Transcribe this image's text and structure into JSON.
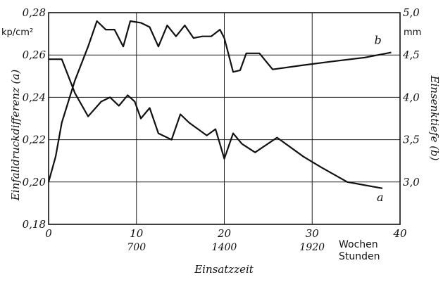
{
  "chart_data": {
    "type": "line",
    "xlabel": "Einsatzzeit",
    "x_ticks": [
      "0",
      "10",
      "20",
      "30",
      "40"
    ],
    "x_secondary_ticks": [
      "700",
      "1400",
      "1920"
    ],
    "x_unit_primary": "Wochen",
    "x_unit_secondary": "Stunden",
    "xlim": [
      0,
      40
    ],
    "y_left": {
      "label": "Einfalldruckdifferenz (a)",
      "unit": "kp/cm²",
      "ylim": [
        0.18,
        0.28
      ],
      "ticks": [
        "0,18",
        "0,20",
        "0,22",
        "0,24",
        "0,26",
        "0,28"
      ]
    },
    "y_right": {
      "label": "Einsenktiefe (b)",
      "unit": "mm",
      "ylim": [
        2.5,
        5.0
      ],
      "ticks": [
        "3,0",
        "3,5",
        "4,0",
        "4,5",
        "5,0"
      ]
    },
    "grid": true,
    "series": [
      {
        "name": "a",
        "axis": "left",
        "x": [
          0,
          1.5,
          3,
          4.5,
          6,
          7,
          8,
          9,
          9.8,
          10.5,
          11.5,
          12.5,
          14,
          15,
          16,
          18,
          19,
          20,
          21,
          22,
          23.5,
          26,
          29,
          31,
          34,
          38
        ],
        "y": [
          0.258,
          0.258,
          0.242,
          0.231,
          0.238,
          0.24,
          0.236,
          0.241,
          0.238,
          0.23,
          0.235,
          0.223,
          0.22,
          0.232,
          0.228,
          0.222,
          0.225,
          0.211,
          0.223,
          0.218,
          0.214,
          0.221,
          0.212,
          0.207,
          0.2,
          0.197
        ]
      },
      {
        "name": "b",
        "axis": "right",
        "x": [
          0,
          0.8,
          1.5,
          3,
          4.5,
          5.5,
          6.5,
          7.5,
          8.5,
          9.3,
          10.5,
          11.5,
          12.5,
          13.5,
          14.5,
          15.5,
          16.5,
          17.5,
          18.5,
          19.5,
          20,
          21,
          21.8,
          22.5,
          24,
          25.5,
          29,
          32,
          36,
          39
        ],
        "y": [
          3.0,
          3.3,
          3.7,
          4.2,
          4.6,
          4.9,
          4.8,
          4.8,
          4.6,
          4.9,
          4.88,
          4.83,
          4.6,
          4.85,
          4.72,
          4.85,
          4.7,
          4.72,
          4.72,
          4.8,
          4.7,
          4.3,
          4.32,
          4.52,
          4.52,
          4.33,
          4.38,
          4.42,
          4.47,
          4.53
        ]
      }
    ],
    "annotations": [
      {
        "text": "a",
        "series": "a"
      },
      {
        "text": "b",
        "series": "b"
      }
    ]
  }
}
